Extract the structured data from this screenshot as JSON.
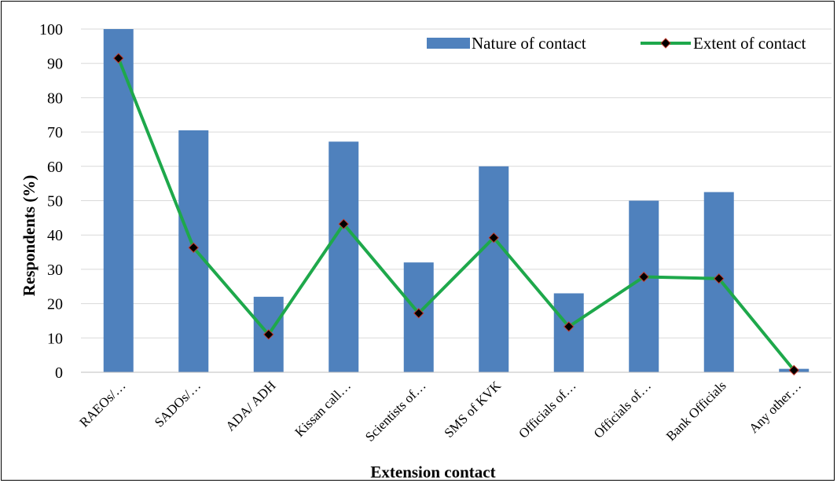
{
  "chart_data": {
    "type": "bar",
    "title": "",
    "xlabel": "Extension contact",
    "ylabel": "Respondents (%)",
    "ylim": [
      0,
      100
    ],
    "yticks": [
      0,
      10,
      20,
      30,
      40,
      50,
      60,
      70,
      80,
      90,
      100
    ],
    "grid": true,
    "legend_position": "top-right",
    "categories": [
      "RAEOs/…",
      "SADOs/…",
      "ADA/ ADH",
      "Kissan call…",
      "Scientists of…",
      "SMS of KVK",
      "Officials of…",
      "Officials of…",
      "Bank Officials",
      "Any other…"
    ],
    "series": [
      {
        "name": "Nature of contact",
        "type": "bar",
        "color": "#4f81bd",
        "values": [
          100,
          70.5,
          22,
          67.2,
          32,
          60,
          23,
          50,
          52.5,
          1
        ]
      },
      {
        "name": "Extent of contact",
        "type": "line",
        "color": "#1ea84b",
        "marker_color": "#000000",
        "marker_edge": "#c0392b",
        "values": [
          91.5,
          36.3,
          11,
          43.2,
          17.2,
          39.2,
          13.3,
          27.8,
          27.3,
          0.6
        ]
      }
    ]
  }
}
